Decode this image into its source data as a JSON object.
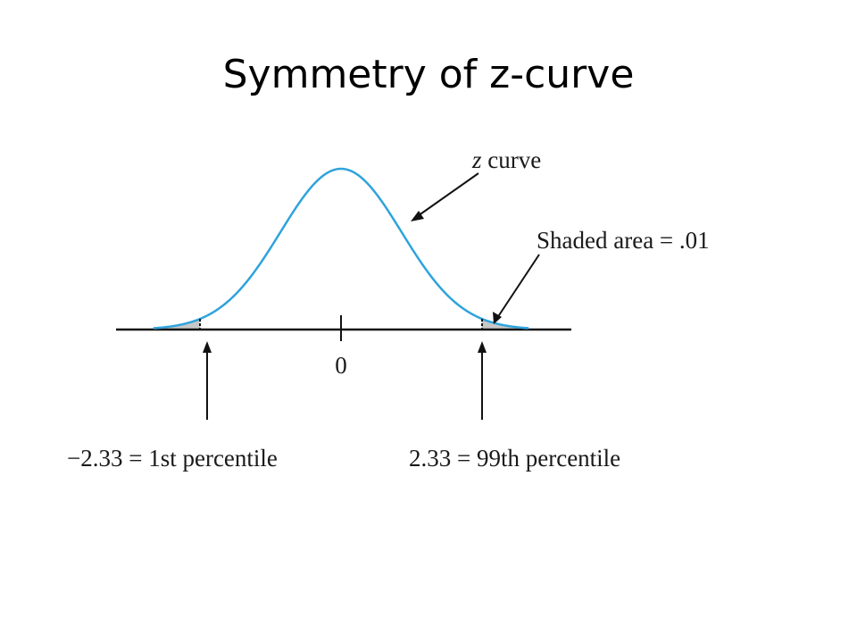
{
  "slide": {
    "title": "Symmetry of z-curve"
  },
  "diagram": {
    "curve_label_var": "z",
    "curve_label_word": " curve",
    "shaded_label": "Shaded area = .01",
    "center_tick_label": "0",
    "left_label": "−2.33 = 1st percentile",
    "right_label": "2.33 = 99th percentile",
    "left_cutoff_z": -2.33,
    "right_cutoff_z": 2.33,
    "tail_area": 0.01
  },
  "colors": {
    "curve": "#2ea3dc",
    "shade": "#c8c8c8",
    "axis": "#111111",
    "text": "#1a1a1a"
  }
}
